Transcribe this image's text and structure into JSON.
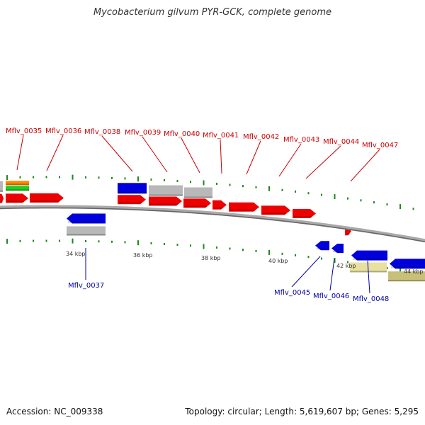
{
  "title": "Mycobacterium gilvum PYR-GCK, complete genome",
  "accession": "Accession: NC_009338",
  "summary": "Topology: circular; Length: 5,619,607 bp; Genes: 5,295",
  "colors": {
    "forward_label": "#cc0000",
    "reverse_label": "#0000aa",
    "tick": "#1a8a1a",
    "cds_red": "#ee0000",
    "cds_blue": "#0000dd",
    "gray_feature": "#b8b8b8",
    "orange_feature": "#ff8800",
    "green_feature": "#22cc22",
    "khaki_feature": "#e8e0a0",
    "olive_feature": "#c8bf78",
    "backbone": "#888888"
  },
  "scale_labels": [
    "34 kbp",
    "36 kbp",
    "38 kbp",
    "40 kbp",
    "42 kbp",
    "44 kbp"
  ],
  "forward_genes": [
    "Mflv_0035",
    "Mflv_0036",
    "Mflv_0038",
    "Mflv_0039",
    "Mflv_0040",
    "Mflv_0041",
    "Mflv_0042",
    "Mflv_0043",
    "Mflv_0044",
    "Mflv_0047"
  ],
  "reverse_genes": [
    "Mflv_0037",
    "Mflv_0045",
    "Mflv_0046",
    "Mflv_0048"
  ]
}
